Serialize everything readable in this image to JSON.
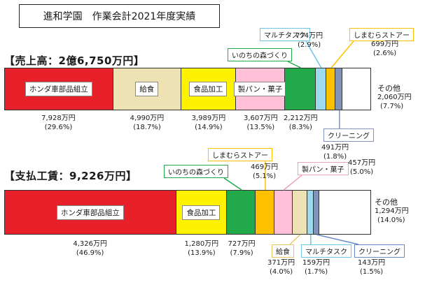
{
  "title": "進和学園　作業会計2021年度実績",
  "chart_data": [
    {
      "type": "bar",
      "subtype": "100% stacked horizontal",
      "title": "【売上高：2億6,750万円】",
      "categories": [
        "ホンダ車部品組立",
        "給食",
        "食品加工",
        "製パン・菓子",
        "いのちの森づくり",
        "マルチタスク",
        "しまむらストアー",
        "クリーニング",
        "その他"
      ],
      "values": [
        7928,
        4990,
        3989,
        3607,
        2212,
        774,
        699,
        491,
        2060
      ],
      "percents": [
        29.6,
        18.7,
        14.9,
        13.5,
        8.3,
        2.9,
        2.6,
        1.8,
        7.7
      ],
      "value_labels": [
        "7,928万円",
        "4,990万円",
        "3,989万円",
        "3,607万円",
        "2,212万円",
        "774万円",
        "699万円",
        "491万円",
        "2,060万円"
      ],
      "percent_labels": [
        "(29.6%)",
        "(18.7%)",
        "(14.9%)",
        "(13.5%)",
        "(8.3%)",
        "(2.9%)",
        "(2.6%)",
        "(1.8%)",
        "(7.7%)"
      ],
      "colors": [
        "#e8202a",
        "#ede2b3",
        "#fff200",
        "#ffc0d8",
        "#22aa4a",
        "#9fd9ee",
        "#ffc000",
        "#8094b8",
        "#ffffff"
      ],
      "unit": "万円"
    },
    {
      "type": "bar",
      "subtype": "100% stacked horizontal",
      "title": "【支払工賃：9,226万円】",
      "categories": [
        "ホンダ車部品組立",
        "食品加工",
        "いのちの森づくり",
        "しまむらストアー",
        "製パン・菓子",
        "給食",
        "マルチタスク",
        "クリーニング",
        "その他"
      ],
      "values": [
        4326,
        1280,
        727,
        469,
        457,
        371,
        159,
        143,
        1294
      ],
      "percents": [
        46.9,
        13.9,
        7.9,
        5.1,
        5.0,
        4.0,
        1.7,
        1.5,
        14.0
      ],
      "value_labels": [
        "4,326万円",
        "1,280万円",
        "727万円",
        "469万円",
        "457万円",
        "371万円",
        "159万円",
        "143万円",
        "1,294万円"
      ],
      "percent_labels": [
        "(46.9%)",
        "(13.9%)",
        "(7.9%)",
        "(5.1%)",
        "(5.0%)",
        "(4.0%)",
        "(1.7%)",
        "(1.5%)",
        "(14.0%)"
      ],
      "colors": [
        "#e8202a",
        "#fff200",
        "#22aa4a",
        "#ffc000",
        "#ffc0d8",
        "#ede2b3",
        "#9fd9ee",
        "#8094b8",
        "#ffffff"
      ],
      "unit": "万円"
    }
  ]
}
